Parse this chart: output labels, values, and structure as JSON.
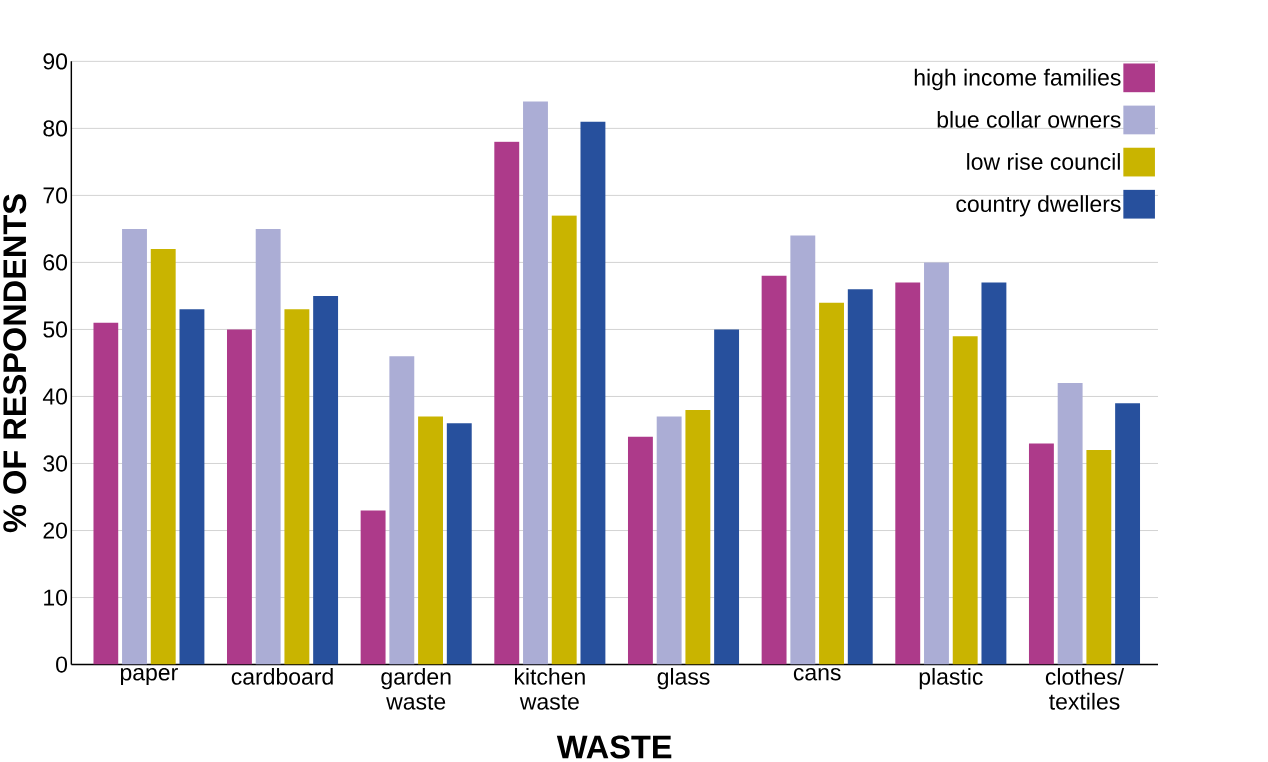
{
  "chart_data": {
    "type": "bar",
    "xlabel": "WASTE",
    "ylabel": "% OF RESPONDENTS",
    "categories": [
      "paper",
      "cardboard",
      "garden waste",
      "kitchen waste",
      "glass",
      "cans",
      "plastic",
      "clothes/ textiles"
    ],
    "series": [
      {
        "name": "high income families",
        "color": "#ad3a8a",
        "values": [
          51,
          50,
          23,
          78,
          34,
          58,
          57,
          33
        ]
      },
      {
        "name": "blue collar owners",
        "color": "#abadd5",
        "values": [
          65,
          65,
          46,
          84,
          37,
          64,
          60,
          42
        ]
      },
      {
        "name": "low rise council",
        "color": "#c9b400",
        "values": [
          62,
          53,
          37,
          67,
          38,
          54,
          49,
          32
        ]
      },
      {
        "name": "country dwellers",
        "color": "#27509d",
        "values": [
          53,
          55,
          36,
          81,
          50,
          56,
          57,
          39
        ]
      }
    ],
    "ylim": [
      0,
      90
    ],
    "yticks": [
      0,
      10,
      20,
      30,
      40,
      50,
      60,
      70,
      80,
      90
    ],
    "grid": "y",
    "legend": "top right"
  }
}
